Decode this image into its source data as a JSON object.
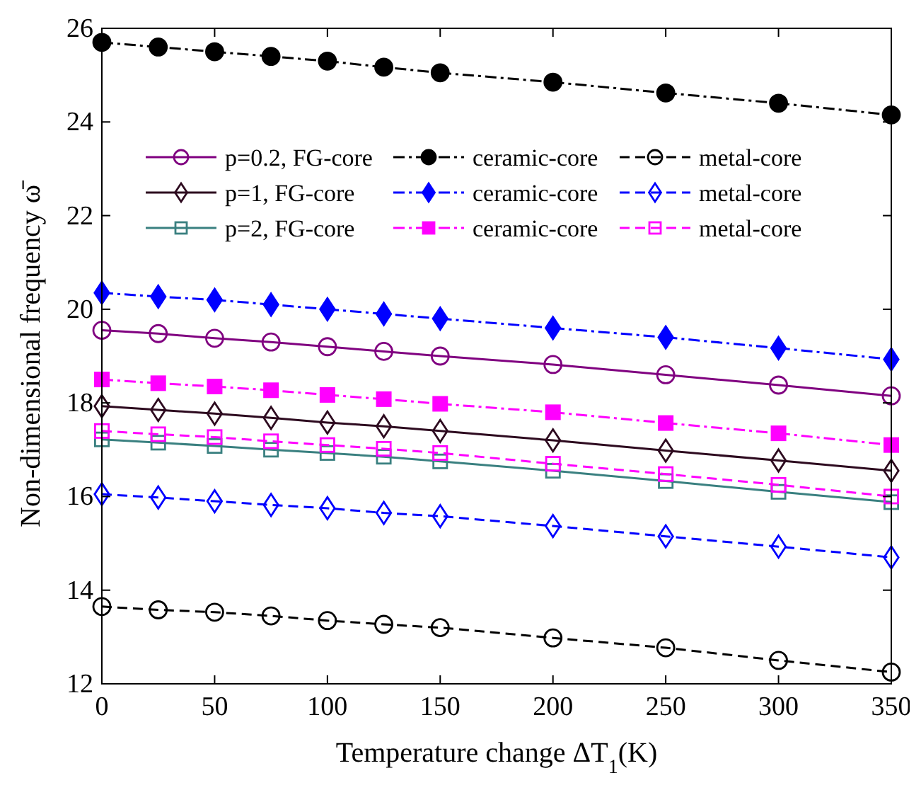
{
  "chart_data": {
    "type": "line",
    "xlabel": "Temperature change ΔT$_{1}$(K)",
    "ylabel": "Non-dimensional frequency ω̄",
    "x": [
      0,
      25,
      50,
      75,
      100,
      125,
      150,
      200,
      250,
      300,
      350
    ],
    "xlim": [
      0,
      350
    ],
    "xticks": [
      0,
      50,
      100,
      150,
      200,
      250,
      300,
      350
    ],
    "ylim": [
      12,
      26
    ],
    "yticks": [
      12,
      14,
      16,
      18,
      20,
      22,
      24,
      26
    ],
    "grid": false,
    "legend": "top",
    "series": [
      {
        "name": "p=0.2, FG-core",
        "color": "#800080",
        "marker": "circle",
        "line_style": "solid",
        "values": [
          19.55,
          19.48,
          19.38,
          19.3,
          19.2,
          19.1,
          19.0,
          18.82,
          18.6,
          18.38,
          18.15
        ]
      },
      {
        "name": "p=1, FG-core",
        "color": "#2d0a1f",
        "marker": "diamond",
        "line_style": "solid",
        "values": [
          17.93,
          17.85,
          17.77,
          17.68,
          17.58,
          17.5,
          17.4,
          17.2,
          16.98,
          16.77,
          16.55
        ]
      },
      {
        "name": "p=2, FG-core",
        "color": "#3a8080",
        "marker": "square",
        "line_style": "solid",
        "values": [
          17.22,
          17.15,
          17.08,
          17.0,
          16.93,
          16.85,
          16.75,
          16.55,
          16.33,
          16.1,
          15.88
        ]
      },
      {
        "name": "ceramic-core",
        "color": "#000000",
        "marker": "circle",
        "line_style": "dashdot",
        "values": [
          25.7,
          25.6,
          25.5,
          25.4,
          25.3,
          25.17,
          25.05,
          24.85,
          24.62,
          24.4,
          24.15
        ]
      },
      {
        "name": "ceramic-core",
        "color": "#0000ff",
        "marker": "diamond",
        "line_style": "dashdot",
        "values": [
          20.35,
          20.27,
          20.2,
          20.1,
          20.0,
          19.9,
          19.8,
          19.6,
          19.4,
          19.17,
          18.93
        ]
      },
      {
        "name": "ceramic-core",
        "color": "#ff00ff",
        "marker": "square",
        "line_style": "dashdot",
        "values": [
          18.5,
          18.42,
          18.35,
          18.27,
          18.17,
          18.08,
          17.98,
          17.8,
          17.57,
          17.35,
          17.1
        ]
      },
      {
        "name": "metal-core",
        "color": "#000000",
        "marker": "circle",
        "line_style": "dashed",
        "values": [
          13.65,
          13.58,
          13.53,
          13.45,
          13.35,
          13.27,
          13.2,
          12.98,
          12.77,
          12.5,
          12.25
        ]
      },
      {
        "name": "metal-core",
        "color": "#0000ff",
        "marker": "diamond",
        "line_style": "dashed",
        "values": [
          16.05,
          15.98,
          15.9,
          15.82,
          15.75,
          15.65,
          15.58,
          15.37,
          15.15,
          14.93,
          14.7
        ]
      },
      {
        "name": "metal-core",
        "color": "#ff00ff",
        "marker": "square",
        "line_style": "dashed",
        "values": [
          17.4,
          17.33,
          17.27,
          17.18,
          17.1,
          17.02,
          16.93,
          16.7,
          16.48,
          16.25,
          16.0
        ]
      }
    ]
  }
}
